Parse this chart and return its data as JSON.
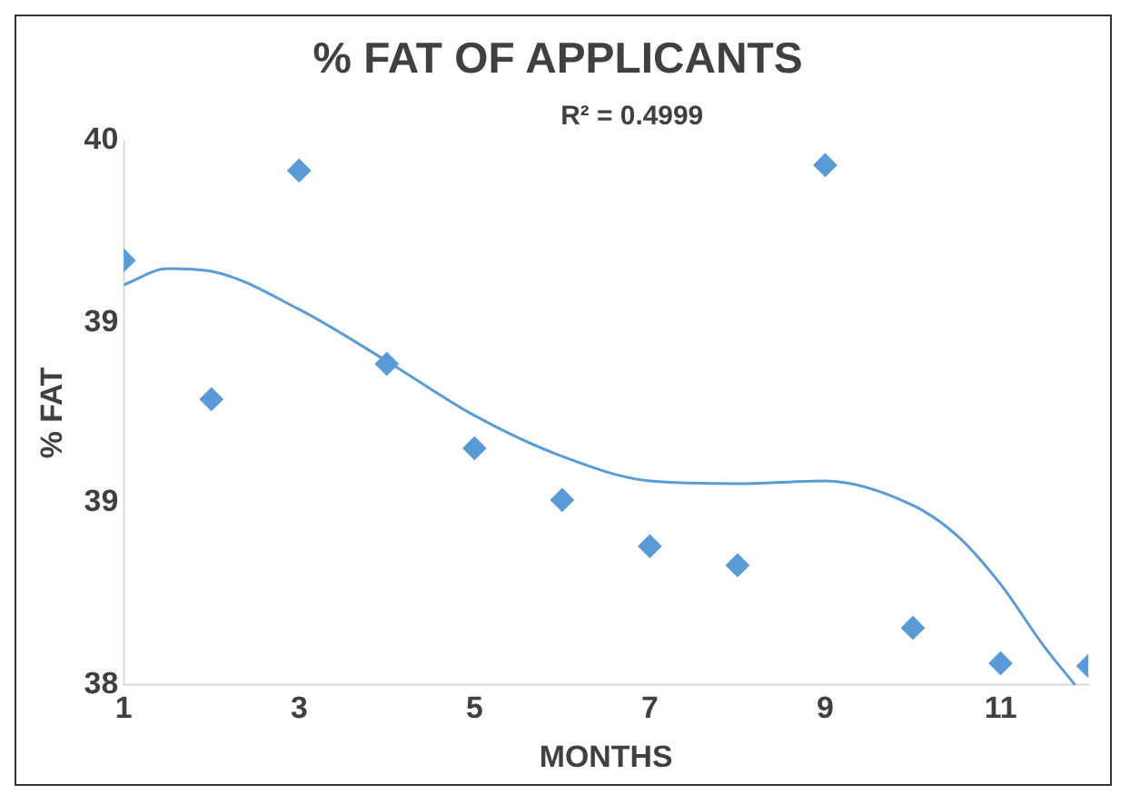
{
  "chart_data": {
    "type": "scatter",
    "title": "% FAT OF APPLICANTS",
    "xlabel": "MONTHS",
    "ylabel": "% FAT",
    "annotations": [
      "R² = 0.4999"
    ],
    "x": [
      1,
      2,
      3,
      4,
      5,
      6,
      7,
      8,
      9,
      10,
      11,
      12
    ],
    "series": [
      {
        "color": "#5b9bd5",
        "marker": "diamond",
        "values": [
          39.56,
          39.05,
          39.89,
          39.18,
          38.87,
          38.68,
          38.51,
          38.44,
          39.91,
          38.21,
          38.08,
          38.07
        ]
      },
      {
        "type": "line",
        "color": "#5b9bd5",
        "marker": "none",
        "x": [
          1,
          1.5,
          2,
          3,
          4,
          5,
          6,
          7,
          8,
          9,
          10,
          10.5,
          11,
          11.5,
          11.85
        ],
        "values": [
          39.47,
          39.53,
          39.52,
          39.38,
          39.19,
          38.99,
          38.84,
          38.75,
          38.74,
          38.75,
          38.66,
          38.55,
          38.37,
          38.14,
          38.0
        ]
      }
    ],
    "xlim": [
      1,
      12
    ],
    "xticks": [
      1,
      3,
      5,
      7,
      9,
      11
    ],
    "ylim": [
      38,
      40
    ],
    "yticks": [
      38,
      {
        "value": 38.67,
        "label": "39"
      },
      {
        "value": 39.33,
        "label": "39"
      },
      40
    ],
    "grid": false,
    "legend": false
  }
}
